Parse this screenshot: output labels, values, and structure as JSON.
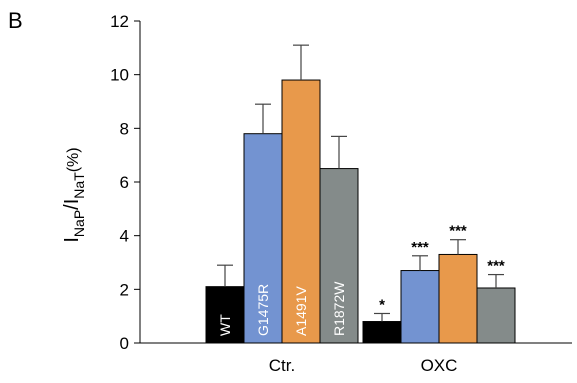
{
  "panel_label": "B",
  "chart_data": {
    "type": "bar",
    "ylabel": {
      "main_a": "I",
      "sub_a": "NaP",
      "sep": "/I",
      "sub_b": "NaT",
      "unit": "(%)"
    },
    "ylim": [
      0,
      12
    ],
    "yticks": [
      0,
      2,
      4,
      6,
      8,
      10,
      12
    ],
    "grid": false,
    "legend": "none",
    "categories": [
      "Ctr.",
      "OXC"
    ],
    "series": [
      {
        "name": "WT",
        "color": "#000000",
        "values": [
          2.1,
          0.8
        ],
        "errors": [
          0.8,
          0.3
        ],
        "significance": [
          "",
          "*"
        ]
      },
      {
        "name": "G1475R",
        "color": "#7393d1",
        "values": [
          7.8,
          2.7
        ],
        "errors": [
          1.1,
          0.55
        ],
        "significance": [
          "",
          "***"
        ]
      },
      {
        "name": "A1491V",
        "color": "#e8994b",
        "values": [
          9.8,
          3.3
        ],
        "errors": [
          1.3,
          0.55
        ],
        "significance": [
          "",
          "***"
        ]
      },
      {
        "name": "R1872W",
        "color": "#848b8a",
        "values": [
          6.5,
          2.05
        ],
        "errors": [
          1.2,
          0.5
        ],
        "significance": [
          "",
          "***"
        ]
      }
    ]
  }
}
